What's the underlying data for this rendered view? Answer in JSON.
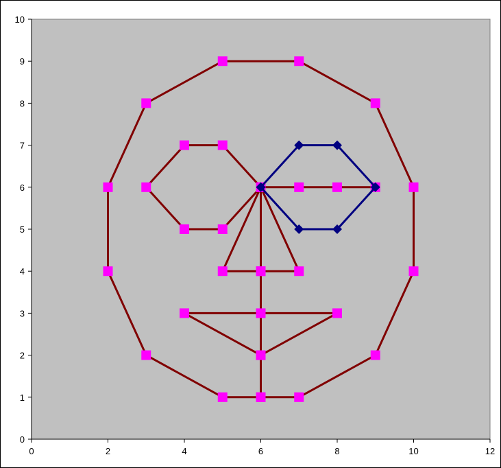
{
  "chart_data": {
    "type": "scatter",
    "title": "",
    "xlabel": "",
    "ylabel": "",
    "xlim": [
      0,
      12
    ],
    "ylim": [
      0,
      10
    ],
    "x_ticks": [
      0,
      2,
      4,
      6,
      8,
      10,
      12
    ],
    "y_ticks": [
      0,
      1,
      2,
      3,
      4,
      5,
      6,
      7,
      8,
      9,
      10
    ],
    "x_tick_labels": [
      "0",
      "2",
      "4",
      "6",
      "8",
      "10",
      "12"
    ],
    "y_tick_labels": [
      "0",
      "1",
      "2",
      "3",
      "4",
      "5",
      "6",
      "7",
      "8",
      "9",
      "10"
    ],
    "grid": false,
    "legend": "none",
    "colors": {
      "plot_background": "#c0c0c0",
      "line_main": "#800000",
      "marker_main": "#ff00ff",
      "line_right_eye": "#000080",
      "marker_right_eye": "#000080"
    },
    "series": [
      {
        "line_color": "#800000",
        "marker": "square",
        "marker_color": "#ff00ff",
        "points": [
          [
            6,
            1
          ],
          [
            7,
            1
          ],
          [
            9,
            2
          ],
          [
            10,
            4
          ],
          [
            10,
            6
          ],
          [
            9,
            8
          ],
          [
            7,
            9
          ],
          [
            5,
            9
          ],
          [
            3,
            8
          ],
          [
            2,
            6
          ],
          [
            2,
            4
          ],
          [
            3,
            2
          ],
          [
            5,
            1
          ],
          [
            6,
            1
          ],
          [
            6,
            2
          ],
          [
            4,
            3
          ],
          [
            8,
            3
          ],
          [
            6,
            2
          ],
          [
            6,
            3
          ],
          [
            6,
            4
          ],
          [
            5,
            4
          ],
          [
            6,
            6
          ],
          [
            7,
            4
          ],
          [
            6,
            4
          ],
          [
            6,
            6
          ],
          [
            5,
            7
          ],
          [
            4,
            7
          ],
          [
            3,
            6
          ],
          [
            4,
            5
          ],
          [
            5,
            5
          ],
          [
            6,
            6
          ],
          [
            7,
            6
          ],
          [
            8,
            6
          ],
          [
            9,
            6
          ]
        ]
      },
      {
        "line_color": "#000080",
        "marker": "diamond",
        "marker_color": "#000080",
        "points": [
          [
            6,
            6
          ],
          [
            7,
            7
          ],
          [
            8,
            7
          ],
          [
            9,
            6
          ],
          [
            8,
            5
          ],
          [
            7,
            5
          ],
          [
            6,
            6
          ]
        ]
      }
    ]
  }
}
